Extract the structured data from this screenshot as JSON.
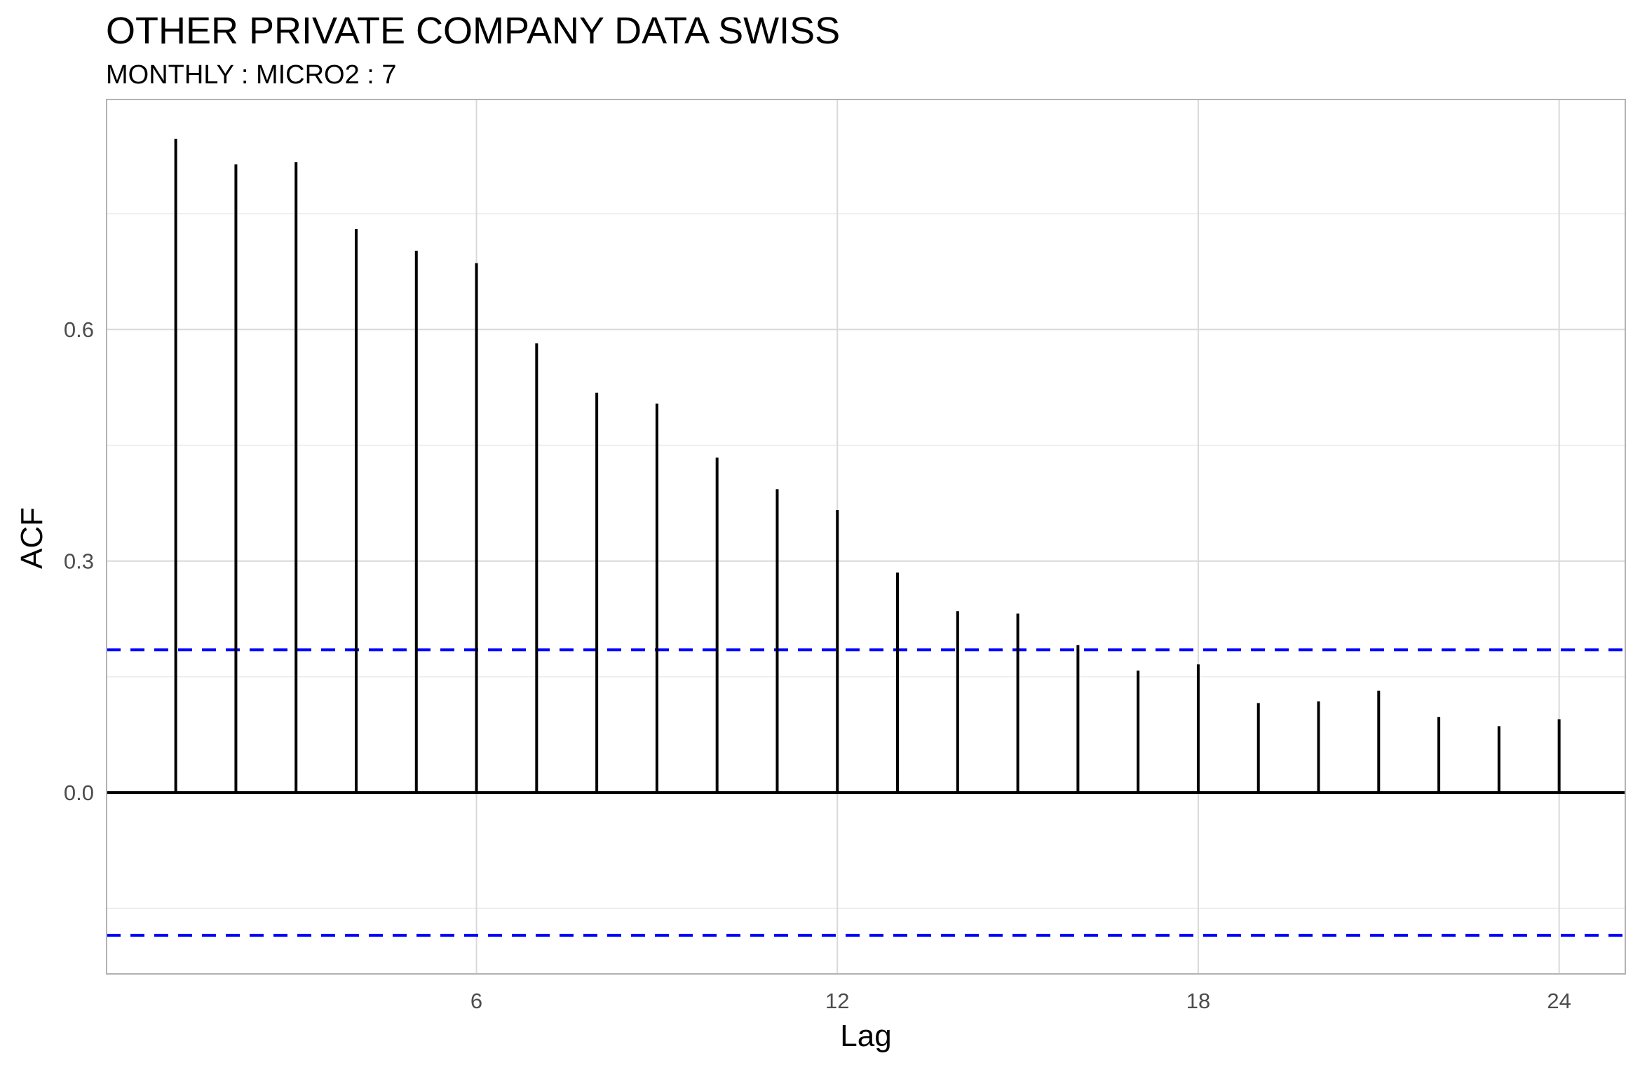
{
  "chart_data": {
    "type": "bar",
    "title": "OTHER PRIVATE COMPANY DATA SWISS",
    "subtitle": "MONTHLY : MICRO2 : 7",
    "xlabel": "Lag",
    "ylabel": "ACF",
    "x": [
      1,
      2,
      3,
      4,
      5,
      6,
      7,
      8,
      9,
      10,
      11,
      12,
      13,
      14,
      15,
      16,
      17,
      18,
      19,
      20,
      21,
      22,
      23,
      24
    ],
    "values": [
      0.847,
      0.814,
      0.817,
      0.73,
      0.702,
      0.686,
      0.582,
      0.518,
      0.504,
      0.434,
      0.393,
      0.366,
      0.285,
      0.235,
      0.232,
      0.191,
      0.158,
      0.166,
      0.116,
      0.118,
      0.132,
      0.098,
      0.086,
      0.095
    ],
    "confidence_band": [
      -0.185,
      0.185
    ],
    "xlim": [
      -0.15,
      25.1
    ],
    "ylim": [
      -0.235,
      0.898
    ],
    "x_ticks": [
      6,
      12,
      18,
      24
    ],
    "x_tick_labels": [
      "6",
      "12",
      "18",
      "24"
    ],
    "y_ticks": [
      0.0,
      0.3,
      0.6
    ],
    "y_tick_labels": [
      "0.0",
      "0.3",
      "0.6"
    ],
    "grid": true,
    "colors": {
      "bars": "#000000",
      "zero_line": "#000000",
      "confidence": "#0000ff",
      "grid_major": "#d9d9d9",
      "grid_minor": "#ebebeb",
      "panel_border": "#b3b3b3"
    }
  }
}
